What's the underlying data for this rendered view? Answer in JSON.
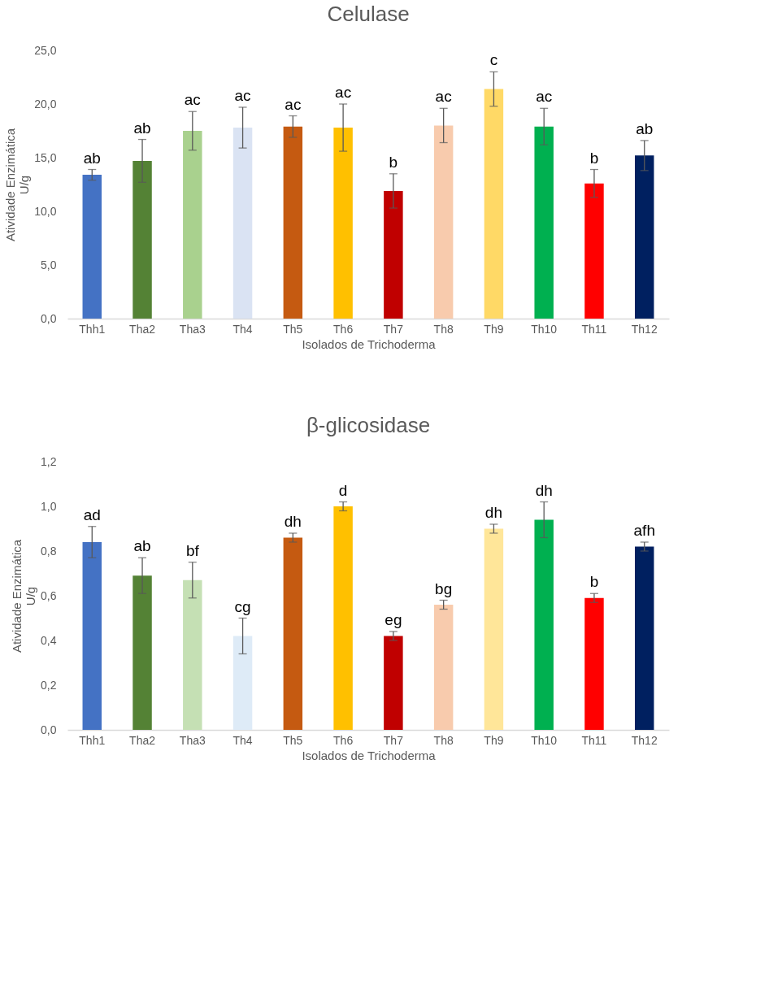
{
  "chart_data": [
    {
      "type": "bar",
      "title": "Celulase",
      "xlabel": "Isolados de Trichoderma",
      "ylabel": "Atividade Enzimática\nU/g",
      "categories": [
        "Thh1",
        "Tha2",
        "Tha3",
        "Th4",
        "Th5",
        "Th6",
        "Th7",
        "Th8",
        "Th9",
        "Th10",
        "Th11",
        "Th12"
      ],
      "values": [
        13.4,
        14.7,
        17.5,
        17.8,
        17.9,
        17.8,
        11.9,
        18.0,
        21.4,
        17.9,
        12.6,
        15.2
      ],
      "errors": [
        0.5,
        2.0,
        1.8,
        1.9,
        1.0,
        2.2,
        1.6,
        1.6,
        1.6,
        1.7,
        1.3,
        1.4
      ],
      "colors": [
        "#4472c4",
        "#548235",
        "#a9d18e",
        "#dae3f3",
        "#c55a11",
        "#ffc000",
        "#c00000",
        "#f8cbad",
        "#ffd966",
        "#00b050",
        "#ff0000",
        "#002060"
      ],
      "ylim": [
        0,
        25
      ],
      "yticks": [
        {
          "value": 0,
          "label": "0,0"
        },
        {
          "value": 5,
          "label": "5,0"
        },
        {
          "value": 10,
          "label": "10,0"
        },
        {
          "value": 15,
          "label": "15,0"
        },
        {
          "value": 20,
          "label": "20,0"
        },
        {
          "value": 25,
          "label": "25,0"
        }
      ],
      "grid": false,
      "annotations": [
        {
          "text": "ab",
          "x": "Thh1",
          "y": 13.9
        },
        {
          "text": "ab",
          "x": "Tha2",
          "y": 16.7
        },
        {
          "text": "ac",
          "x": "Tha3",
          "y": 19.3
        },
        {
          "text": "ac",
          "x": "Th4",
          "y": 19.7
        },
        {
          "text": "ac",
          "x": "Th5",
          "y": 18.9
        },
        {
          "text": "ac",
          "x": "Th6",
          "y": 20.0
        },
        {
          "text": "b",
          "x": "Th7",
          "y": 13.5
        },
        {
          "text": "ac",
          "x": "Th8",
          "y": 19.6
        },
        {
          "text": "c",
          "x": "Th9",
          "y": 23.0
        },
        {
          "text": "ac",
          "x": "Th10",
          "y": 19.6
        },
        {
          "text": "b",
          "x": "Th11",
          "y": 13.9
        },
        {
          "text": "ab",
          "x": "Th12",
          "y": 16.6
        }
      ]
    },
    {
      "type": "bar",
      "title": "β-glicosidase",
      "xlabel": "Isolados de Trichoderma",
      "ylabel": "Atividade Enzimática\nU/g",
      "categories": [
        "Thh1",
        "Tha2",
        "Tha3",
        "Th4",
        "Th5",
        "Th6",
        "Th7",
        "Th8",
        "Th9",
        "Th10",
        "Th11",
        "Th12"
      ],
      "values": [
        0.84,
        0.69,
        0.67,
        0.42,
        0.86,
        1.0,
        0.42,
        0.56,
        0.9,
        0.94,
        0.59,
        0.82
      ],
      "errors": [
        0.07,
        0.08,
        0.08,
        0.08,
        0.02,
        0.02,
        0.02,
        0.02,
        0.02,
        0.08,
        0.02,
        0.02
      ],
      "colors": [
        "#4472c4",
        "#548235",
        "#c5e0b4",
        "#deebf7",
        "#c55a11",
        "#ffc000",
        "#c00000",
        "#f8cbad",
        "#ffe699",
        "#00b050",
        "#ff0000",
        "#002060"
      ],
      "ylim": [
        0,
        1.2
      ],
      "yticks": [
        {
          "value": 0,
          "label": "0,0"
        },
        {
          "value": 0.2,
          "label": "0,2"
        },
        {
          "value": 0.4,
          "label": "0,4"
        },
        {
          "value": 0.6,
          "label": "0,6"
        },
        {
          "value": 0.8,
          "label": "0,8"
        },
        {
          "value": 1.0,
          "label": "1,0"
        },
        {
          "value": 1.2,
          "label": "1,2"
        }
      ],
      "grid": false,
      "annotations": [
        {
          "text": "ad",
          "x": "Thh1",
          "y": 0.91
        },
        {
          "text": "ab",
          "x": "Tha2",
          "y": 0.77
        },
        {
          "text": "bf",
          "x": "Tha3",
          "y": 0.75
        },
        {
          "text": "cg",
          "x": "Th4",
          "y": 0.5
        },
        {
          "text": "dh",
          "x": "Th5",
          "y": 0.88
        },
        {
          "text": "d",
          "x": "Th6",
          "y": 1.02
        },
        {
          "text": "eg",
          "x": "Th7",
          "y": 0.44
        },
        {
          "text": "bg",
          "x": "Th8",
          "y": 0.58
        },
        {
          "text": "dh",
          "x": "Th9",
          "y": 0.92
        },
        {
          "text": "dh",
          "x": "Th10",
          "y": 1.02
        },
        {
          "text": "b",
          "x": "Th11",
          "y": 0.61
        },
        {
          "text": "afh",
          "x": "Th12",
          "y": 0.84
        }
      ]
    }
  ]
}
